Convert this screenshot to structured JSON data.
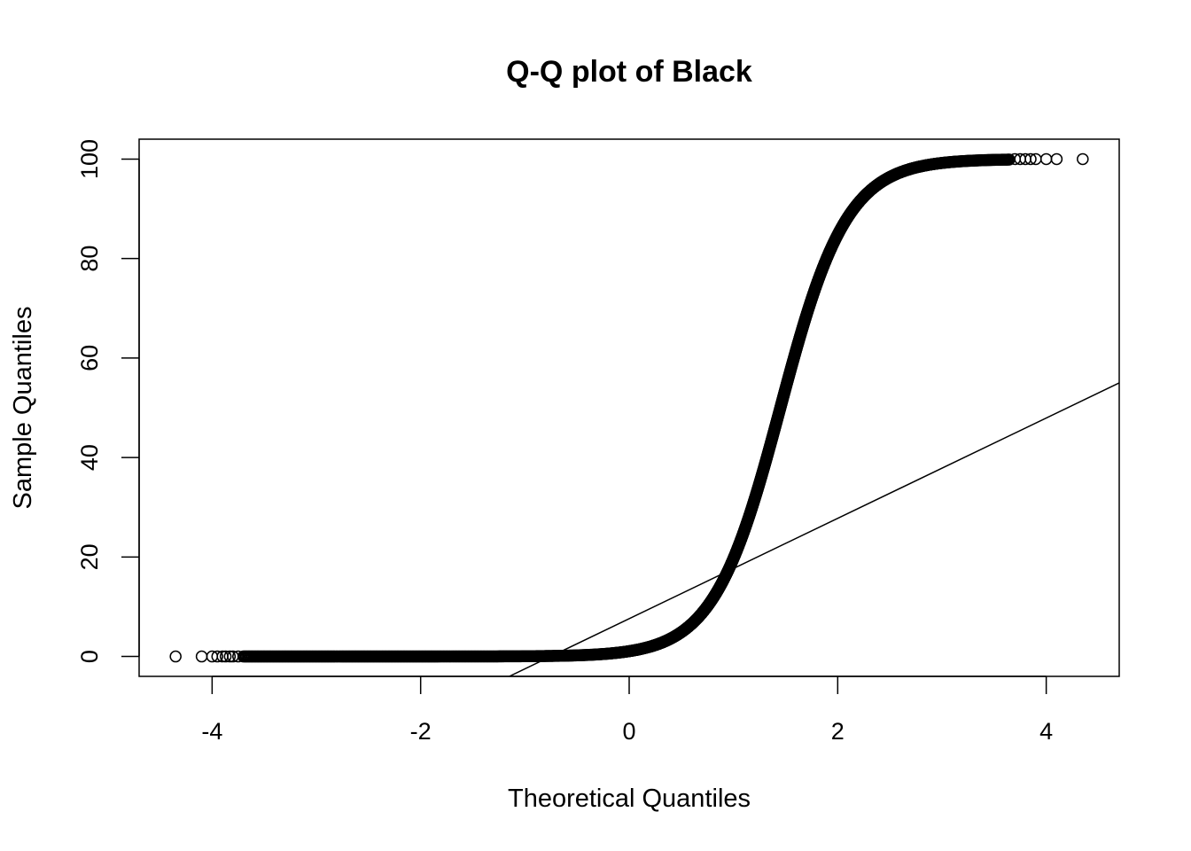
{
  "chart_data": {
    "type": "scatter",
    "title": "Q-Q plot of Black",
    "xlabel": "Theoretical Quantiles",
    "ylabel": "Sample Quantiles",
    "xlim": [
      -4.7,
      4.7
    ],
    "ylim": [
      -4,
      104
    ],
    "x_ticks": [
      "-4",
      "-2",
      "0",
      "2",
      "4"
    ],
    "y_ticks": [
      "0",
      "20",
      "40",
      "60",
      "80",
      "100"
    ],
    "grid": false,
    "legend": "none",
    "qq_line": {
      "x": [
        -1.15,
        4.7
      ],
      "y": [
        -4,
        55
      ]
    },
    "points_sigmoid_model": {
      "center": 1.45,
      "scale": 0.32,
      "min": 0,
      "max": 100
    },
    "points": [
      [
        -4.35,
        0
      ],
      [
        -4.1,
        0
      ],
      [
        -4.0,
        0
      ],
      [
        -3.95,
        0
      ],
      [
        -3.9,
        0
      ],
      [
        -3.87,
        0
      ],
      [
        -3.83,
        0
      ],
      [
        -3.8,
        0
      ],
      [
        -3.75,
        0
      ],
      [
        -3.5,
        0
      ],
      [
        -3.0,
        0
      ],
      [
        -2.5,
        0
      ],
      [
        -2.0,
        0
      ],
      [
        -1.5,
        0.1
      ],
      [
        -1.0,
        0.4
      ],
      [
        -0.5,
        1.1
      ],
      [
        0.0,
        3.0
      ],
      [
        0.3,
        5.8
      ],
      [
        0.5,
        9.6
      ],
      [
        0.7,
        14.8
      ],
      [
        0.9,
        22.5
      ],
      [
        1.1,
        33.5
      ],
      [
        1.3,
        47.0
      ],
      [
        1.45,
        56.0
      ],
      [
        1.6,
        69.0
      ],
      [
        1.8,
        80.5
      ],
      [
        2.0,
        88.4
      ],
      [
        2.2,
        93.5
      ],
      [
        2.5,
        96.8
      ],
      [
        3.0,
        99.2
      ],
      [
        3.5,
        99.8
      ],
      [
        3.7,
        100
      ],
      [
        3.75,
        100
      ],
      [
        3.8,
        100
      ],
      [
        3.85,
        100
      ],
      [
        3.9,
        100
      ],
      [
        4.0,
        100
      ],
      [
        4.1,
        100
      ],
      [
        4.35,
        100
      ]
    ],
    "colors": {
      "points": "#000000",
      "line": "#000000",
      "background": "#ffffff"
    }
  }
}
